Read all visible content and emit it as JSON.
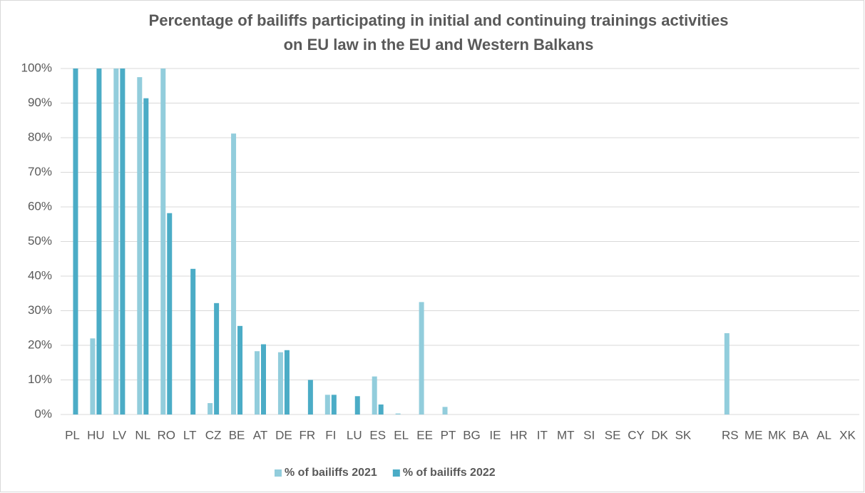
{
  "chart_data": {
    "type": "bar",
    "title": [
      "Percentage of bailiffs participating in initial and continuing trainings activities",
      "on EU law in the EU and Western Balkans"
    ],
    "categories": [
      "PL",
      "HU",
      "LV",
      "NL",
      "RO",
      "LT",
      "CZ",
      "BE",
      "AT",
      "DE",
      "FR",
      "FI",
      "LU",
      "ES",
      "EL",
      "EE",
      "PT",
      "BG",
      "IE",
      "HR",
      "IT",
      "MT",
      "SI",
      "SE",
      "CY",
      "DK",
      "SK",
      null,
      "RS",
      "ME",
      "MK",
      "BA",
      "AL",
      "XK"
    ],
    "series": [
      {
        "name": "% of bailiffs 2021",
        "color": "#92cddc",
        "values": [
          0,
          22,
          100,
          97.5,
          100,
          0,
          3.3,
          81.2,
          18.3,
          18,
          0,
          5.7,
          0,
          11,
          0.3,
          32.5,
          2.2,
          0,
          0,
          0,
          0,
          0,
          0,
          0,
          0,
          0,
          0,
          null,
          23.5,
          0,
          0,
          0,
          0,
          0
        ]
      },
      {
        "name": "% of bailiffs 2022",
        "color": "#4bacc6",
        "values": [
          100,
          100,
          100,
          91.4,
          58.2,
          42.1,
          32.2,
          25.6,
          20.3,
          18.6,
          10,
          5.7,
          5.3,
          2.9,
          0,
          0,
          0,
          0,
          0,
          0,
          0,
          0,
          0,
          0,
          0,
          0,
          0,
          null,
          0,
          0,
          0,
          0,
          0,
          0
        ]
      }
    ],
    "ylim": [
      0,
      100
    ],
    "yticks": [
      {
        "value": 0,
        "label": "0%"
      },
      {
        "value": 10,
        "label": "10%"
      },
      {
        "value": 20,
        "label": "20%"
      },
      {
        "value": 30,
        "label": "30%"
      },
      {
        "value": 40,
        "label": "40%"
      },
      {
        "value": 50,
        "label": "50%"
      },
      {
        "value": 60,
        "label": "60%"
      },
      {
        "value": 70,
        "label": "70%"
      },
      {
        "value": 80,
        "label": "80%"
      },
      {
        "value": 90,
        "label": "90%"
      },
      {
        "value": 100,
        "label": "100%"
      }
    ],
    "grid": true,
    "legend": "bottom"
  }
}
